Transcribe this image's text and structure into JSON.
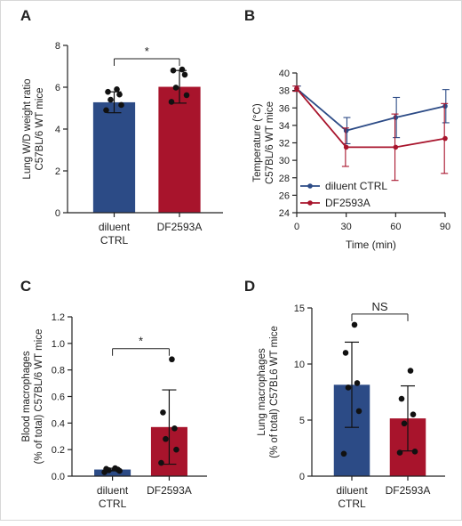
{
  "colors": {
    "ctrl": "#2c4b86",
    "df": "#a8142c",
    "axis": "#222222",
    "point": "#111111"
  },
  "chart_data": [
    {
      "id": "A",
      "panel_label": "A",
      "type": "bar",
      "categories": [
        "diluent\nCTRL",
        "DF2593A"
      ],
      "values": [
        5.28,
        6.02
      ],
      "error": [
        0.5,
        0.78
      ],
      "points": [
        [
          4.9,
          5.15,
          5.4,
          5.65,
          5.78,
          5.9
        ],
        [
          5.3,
          5.62,
          5.98,
          6.6,
          6.8,
          6.85
        ]
      ],
      "ylabel_lines": [
        "Lung W/D weight ratio",
        "C57BL/6 WT mice"
      ],
      "ylim": [
        0,
        8
      ],
      "yticks": [
        "0",
        "2",
        "4",
        "6",
        "8"
      ],
      "significance": "*"
    },
    {
      "id": "B",
      "panel_label": "B",
      "type": "line",
      "x": [
        0,
        30,
        60,
        90
      ],
      "xticks": [
        "0",
        "30",
        "60",
        "90"
      ],
      "xlabel": "Time (min)",
      "ylabel_lines": [
        "Temperature (°C)",
        "C57BL/6 WT mice"
      ],
      "ylim": [
        24,
        40
      ],
      "yticks": [
        "24",
        "26",
        "28",
        "30",
        "32",
        "34",
        "36",
        "38",
        "40"
      ],
      "series": [
        {
          "name": "diluent CTRL",
          "values": [
            38.2,
            33.4,
            34.9,
            36.2
          ],
          "error": [
            0.3,
            1.5,
            2.3,
            1.9
          ]
        },
        {
          "name": "DF2593A",
          "values": [
            38.2,
            31.5,
            31.5,
            32.5
          ],
          "error": [
            0.3,
            2.2,
            3.8,
            4.0
          ]
        }
      ],
      "legend_position": "bottom-left"
    },
    {
      "id": "C",
      "panel_label": "C",
      "type": "bar",
      "categories": [
        "diluent\nCTRL",
        "DF2593A"
      ],
      "values": [
        0.05,
        0.37
      ],
      "error": [
        0.01,
        0.28
      ],
      "points": [
        [
          0.03,
          0.04,
          0.045,
          0.05,
          0.055,
          0.06
        ],
        [
          0.1,
          0.2,
          0.28,
          0.36,
          0.48,
          0.88
        ]
      ],
      "ylabel_lines": [
        "Blood macrophages",
        "(% of total) C57BL/6 WT mice"
      ],
      "ylim": [
        0,
        1.2
      ],
      "yticks": [
        "0.0",
        "0.2",
        "0.4",
        "0.6",
        "0.8",
        "1.0",
        "1.2"
      ],
      "significance": "*"
    },
    {
      "id": "D",
      "panel_label": "D",
      "type": "bar",
      "categories": [
        "diluent\nCTRL",
        "DF2593A"
      ],
      "values": [
        8.15,
        5.15
      ],
      "error": [
        3.8,
        2.9
      ],
      "points": [
        [
          2.0,
          5.8,
          7.9,
          8.3,
          11.0,
          13.5
        ],
        [
          2.1,
          2.2,
          4.7,
          5.5,
          6.9,
          9.4
        ]
      ],
      "ylabel_lines": [
        "Lung macrophages",
        "(% of total) C57BL6 WT mice"
      ],
      "ylim": [
        0,
        15
      ],
      "yticks": [
        "0",
        "5",
        "10",
        "15"
      ],
      "significance": "NS"
    }
  ]
}
